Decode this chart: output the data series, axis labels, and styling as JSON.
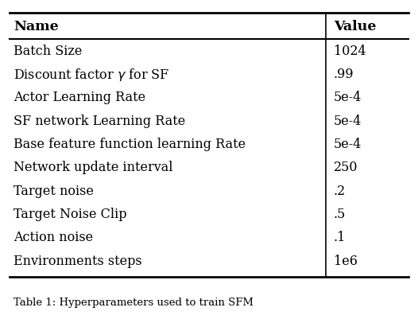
{
  "rows": [
    [
      "Batch Size",
      "1024"
    ],
    [
      "Discount factor $\\gamma$ for SF",
      ".99"
    ],
    [
      "Actor Learning Rate",
      "5e-4"
    ],
    [
      "SF network Learning Rate",
      "5e-4"
    ],
    [
      "Base feature function learning Rate",
      "5e-4"
    ],
    [
      "Network update interval",
      "250"
    ],
    [
      "Target noise",
      ".2"
    ],
    [
      "Target Noise Clip",
      ".5"
    ],
    [
      "Action noise",
      ".1"
    ],
    [
      "Environments steps",
      "1e6"
    ]
  ],
  "col_headers": [
    "Name",
    "Value"
  ],
  "bg_color": "#ffffff",
  "text_color": "#000000",
  "line_color": "#000000",
  "font_size": 11.5,
  "header_font_size": 12.5,
  "col_split": 0.78,
  "caption": "Table 1: Hyperparameters used to train SFM"
}
